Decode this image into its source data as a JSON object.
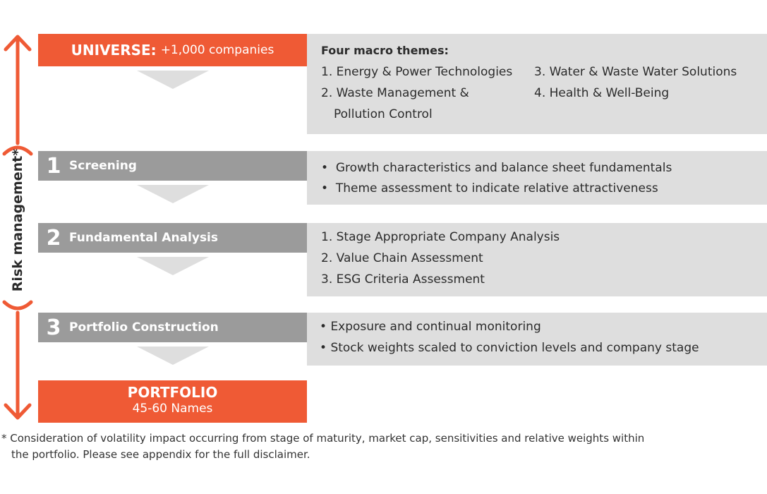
{
  "universe": {
    "title": "UNIVERSE:",
    "subtitle": "+1,000 companies"
  },
  "themes": {
    "heading": "Four macro themes:",
    "items": [
      {
        "num": "1.",
        "label": "Energy & Power Technologies"
      },
      {
        "num": "2.",
        "label": "Waste Management &",
        "label2": "Pollution Control"
      },
      {
        "num": "3.",
        "label": "Water &  Waste Water Solutions"
      },
      {
        "num": "4.",
        "label": "Health & Well-Being"
      }
    ]
  },
  "stages": [
    {
      "number": "1",
      "title": "Screening",
      "bullets": [
        "Growth characteristics and balance sheet fundamentals",
        "Theme assessment to indicate relative attractiveness"
      ]
    },
    {
      "number": "2",
      "title": "Fundamental Analysis",
      "items": [
        {
          "num": "1.",
          "label": "Stage Appropriate Company Analysis"
        },
        {
          "num": "2.",
          "label": "Value Chain Assessment"
        },
        {
          "num": "3.",
          "label": "ESG Criteria Assessment"
        }
      ]
    },
    {
      "number": "3",
      "title": "Portfolio Construction",
      "bullets": [
        "Exposure and continual monitoring",
        "Stock weights scaled to conviction levels and company stage"
      ]
    }
  ],
  "portfolio": {
    "title": "PORTFOLIO",
    "subtitle": "45-60 Names"
  },
  "risk_label": "Risk management*",
  "bullet_symbol": "•",
  "footnote": {
    "line1": "* Consideration of volatility impact occurring from stage of maturity, market cap, sensitivities and relative weights within",
    "line2": "the portfolio. Please see appendix for the full disclaimer."
  },
  "colors": {
    "accent": "#ef5a35",
    "stage": "#9b9b9b",
    "panel": "#dedede"
  }
}
